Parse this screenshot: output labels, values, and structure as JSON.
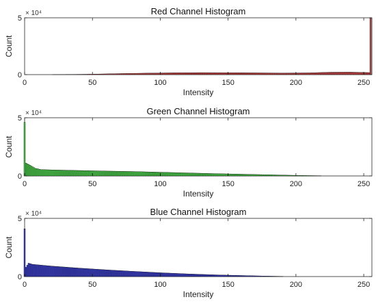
{
  "chart_data": [
    {
      "type": "bar",
      "title": "Red Channel Histogram",
      "xlabel": "Intensity",
      "ylabel": "Count",
      "xlim": [
        0,
        256
      ],
      "ylim": [
        0,
        50000
      ],
      "xticks": [
        "0",
        "50",
        "100",
        "150",
        "200",
        "250"
      ],
      "yticks": [
        "0",
        "5"
      ],
      "y_multiplier": "× 10⁴",
      "grid": false,
      "bar_color": "#c8484a",
      "outline_color": "#000000",
      "x_range_drawn": [
        20,
        255
      ],
      "profile": [
        [
          20,
          0
        ],
        [
          30,
          100
        ],
        [
          50,
          400
        ],
        [
          70,
          900
        ],
        [
          90,
          1300
        ],
        [
          110,
          1600
        ],
        [
          130,
          1750
        ],
        [
          150,
          1700
        ],
        [
          170,
          1550
        ],
        [
          190,
          1400
        ],
        [
          210,
          1550
        ],
        [
          225,
          2100
        ],
        [
          240,
          2200
        ],
        [
          254,
          1800
        ]
      ],
      "spikes": [
        {
          "x": 255,
          "value": 50000
        }
      ]
    },
    {
      "type": "bar",
      "title": "Green Channel Histogram",
      "xlabel": "Intensity",
      "ylabel": "Count",
      "xlim": [
        0,
        256
      ],
      "ylim": [
        0,
        50000
      ],
      "xticks": [
        "0",
        "50",
        "100",
        "150",
        "200",
        "250"
      ],
      "yticks": [
        "0",
        "5"
      ],
      "y_multiplier": "× 10⁴",
      "grid": false,
      "bar_color": "#4cc94c",
      "outline_color": "#000000",
      "x_range_drawn": [
        1,
        218
      ],
      "profile": [
        [
          1,
          11000
        ],
        [
          4,
          9200
        ],
        [
          8,
          6500
        ],
        [
          12,
          5500
        ],
        [
          20,
          5200
        ],
        [
          40,
          4700
        ],
        [
          60,
          4200
        ],
        [
          80,
          3800
        ],
        [
          100,
          3200
        ],
        [
          120,
          2600
        ],
        [
          140,
          2000
        ],
        [
          160,
          1500
        ],
        [
          180,
          1000
        ],
        [
          200,
          500
        ],
        [
          218,
          150
        ]
      ],
      "spikes": [
        {
          "x": 0,
          "value": 46000
        }
      ]
    },
    {
      "type": "bar",
      "title": "Blue Channel Histogram",
      "xlabel": "Intensity",
      "ylabel": "Count",
      "xlim": [
        0,
        256
      ],
      "ylim": [
        0,
        50000
      ],
      "xticks": [
        "0",
        "50",
        "100",
        "150",
        "200",
        "250"
      ],
      "yticks": [
        "0",
        "5"
      ],
      "y_multiplier": "× 10⁴",
      "grid": false,
      "bar_color": "#3b3fc4",
      "outline_color": "#000000",
      "x_range_drawn": [
        1,
        190
      ],
      "profile": [
        [
          1,
          8000
        ],
        [
          3,
          11500
        ],
        [
          6,
          10500
        ],
        [
          20,
          9000
        ],
        [
          40,
          7300
        ],
        [
          60,
          5800
        ],
        [
          80,
          4500
        ],
        [
          100,
          3300
        ],
        [
          120,
          2300
        ],
        [
          140,
          1500
        ],
        [
          160,
          900
        ],
        [
          175,
          500
        ],
        [
          190,
          150
        ]
      ],
      "spikes": [
        {
          "x": 0,
          "value": 41000
        }
      ]
    }
  ]
}
